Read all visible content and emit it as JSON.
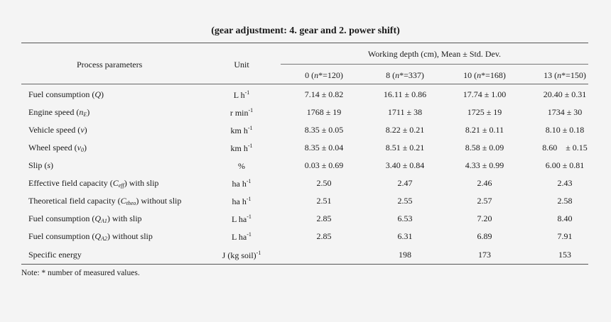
{
  "title": "(gear adjustment: 4. gear and 2. power shift)",
  "header": {
    "process_parameters": "Process parameters",
    "unit": "Unit",
    "working_depth": "Working depth (cm), Mean ± Std. Dev.",
    "depths": [
      {
        "depth": "0 (",
        "n": "n",
        "count": "*=120)"
      },
      {
        "depth": "8 (",
        "n": "n",
        "count": "*=337)"
      },
      {
        "depth": "10 (",
        "n": "n",
        "count": "*=168)"
      },
      {
        "depth": "13 (",
        "n": "n",
        "count": "*=150)"
      }
    ]
  },
  "rows": [
    {
      "param": "Fuel consumption (",
      "sym": "Q",
      "sub": "",
      "tail": ")",
      "unit_base": "L h",
      "unit_sup": "-1",
      "values": [
        "7.14 ± 0.82",
        "16.11 ± 0.86",
        "17.74 ± 1.00",
        "20.40 ± 0.31"
      ]
    },
    {
      "param": "Engine speed (",
      "sym": "n",
      "sub": "E",
      "tail": ")",
      "unit_base": "r min",
      "unit_sup": "-1",
      "values": [
        "1768 ± 19",
        "1711 ± 38",
        "1725 ± 19",
        "1734 ± 30"
      ]
    },
    {
      "param": "Vehicle speed (",
      "sym": "v",
      "sub": "",
      "tail": ")",
      "unit_base": "km h",
      "unit_sup": "-1",
      "values": [
        "8.35 ± 0.05",
        "8.22 ± 0.21",
        "8.21 ± 0.11",
        "8.10 ± 0.18"
      ]
    },
    {
      "param": "Wheel speed (",
      "sym": "v",
      "sub": "0",
      "tail": ")",
      "unit_base": "km h",
      "unit_sup": "-1",
      "values": [
        "8.35 ± 0.04",
        "8.51 ± 0.21",
        "8.58 ± 0.09",
        "8.60    ± 0.15"
      ]
    },
    {
      "param": "Slip (",
      "sym": "s",
      "sub": "",
      "tail": ")",
      "unit_base": "%",
      "unit_sup": "",
      "values": [
        "0.03 ± 0.69",
        "3.40 ± 0.84",
        "4.33 ± 0.99",
        "6.00 ± 0.81"
      ]
    },
    {
      "param": "Effective field capacity (",
      "sym": "C",
      "sub": "eff",
      "tail": ") with slip",
      "unit_base": "ha h",
      "unit_sup": "-1",
      "values": [
        "2.50",
        "2.47",
        "2.46",
        "2.43"
      ]
    },
    {
      "param": "Theoretical field capacity (",
      "sym": "C",
      "sub": "theo",
      "tail": ") without slip",
      "unit_base": "ha h",
      "unit_sup": "-1",
      "values": [
        "2.51",
        "2.55",
        "2.57",
        "2.58"
      ]
    },
    {
      "param": "Fuel consumption (",
      "sym": "Q",
      "sub": "A1",
      "tail": ") with slip",
      "unit_base": "L ha",
      "unit_sup": "-1",
      "values": [
        "2.85",
        "6.53",
        "7.20",
        "8.40"
      ]
    },
    {
      "param": "Fuel consumption (",
      "sym": "Q",
      "sub": "A2",
      "tail": ") without slip",
      "unit_base": "L ha",
      "unit_sup": "-1",
      "values": [
        "2.85",
        "6.31",
        "6.89",
        "7.91"
      ]
    },
    {
      "param": "Specific energy",
      "sym": "",
      "sub": "",
      "tail": "",
      "unit_base": "J (kg soil)",
      "unit_sup": "-1",
      "values": [
        "",
        "198",
        "173",
        "153"
      ]
    }
  ],
  "note": "Note: * number of measured values."
}
